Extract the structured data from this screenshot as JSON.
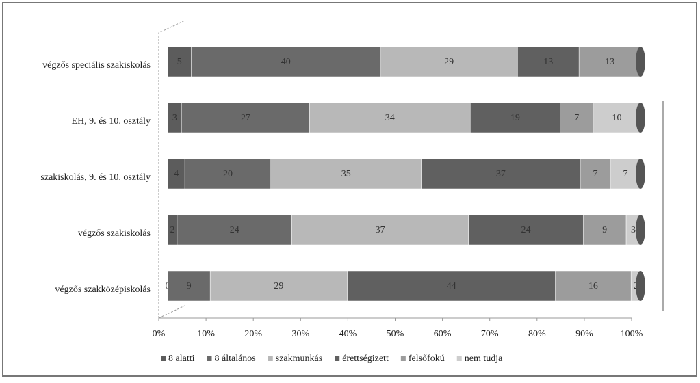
{
  "chart_data": {
    "type": "stacked_percent_barh",
    "categories": [
      "végzős speciális szakiskolás",
      "EH, 9. és 10. osztály",
      "szakiskolás, 9. és 10. osztály",
      "végzős szakiskolás",
      "végzős szakközépiskolás"
    ],
    "series": [
      {
        "name": "8 alatti",
        "color": "#5c5c5c",
        "values": [
          5,
          3,
          4,
          2,
          0
        ]
      },
      {
        "name": "8 általános",
        "color": "#6a6a6a",
        "values": [
          40,
          27,
          20,
          24,
          9
        ]
      },
      {
        "name": "szakmunkás",
        "color": "#b8b8b8",
        "values": [
          29,
          34,
          35,
          37,
          29
        ]
      },
      {
        "name": "érettségizett",
        "color": "#606060",
        "values": [
          13,
          19,
          37,
          24,
          44
        ]
      },
      {
        "name": "felsőfokú",
        "color": "#9c9c9c",
        "values": [
          13,
          7,
          7,
          9,
          16
        ]
      },
      {
        "name": "nem tudja",
        "color": "#cdcdcd",
        "values": [
          null,
          10,
          7,
          3,
          2
        ]
      }
    ],
    "xlim": [
      0,
      100
    ],
    "xticks": [
      {
        "value": 0,
        "label": "0%"
      },
      {
        "value": 10,
        "label": "10%"
      },
      {
        "value": 20,
        "label": "20%"
      },
      {
        "value": 30,
        "label": "30%"
      },
      {
        "value": 40,
        "label": "40%"
      },
      {
        "value": 50,
        "label": "50%"
      },
      {
        "value": 60,
        "label": "60%"
      },
      {
        "value": 70,
        "label": "70%"
      },
      {
        "value": 80,
        "label": "80%"
      },
      {
        "value": 90,
        "label": "90%"
      },
      {
        "value": 100,
        "label": "100%"
      }
    ],
    "legend": "bottom"
  }
}
